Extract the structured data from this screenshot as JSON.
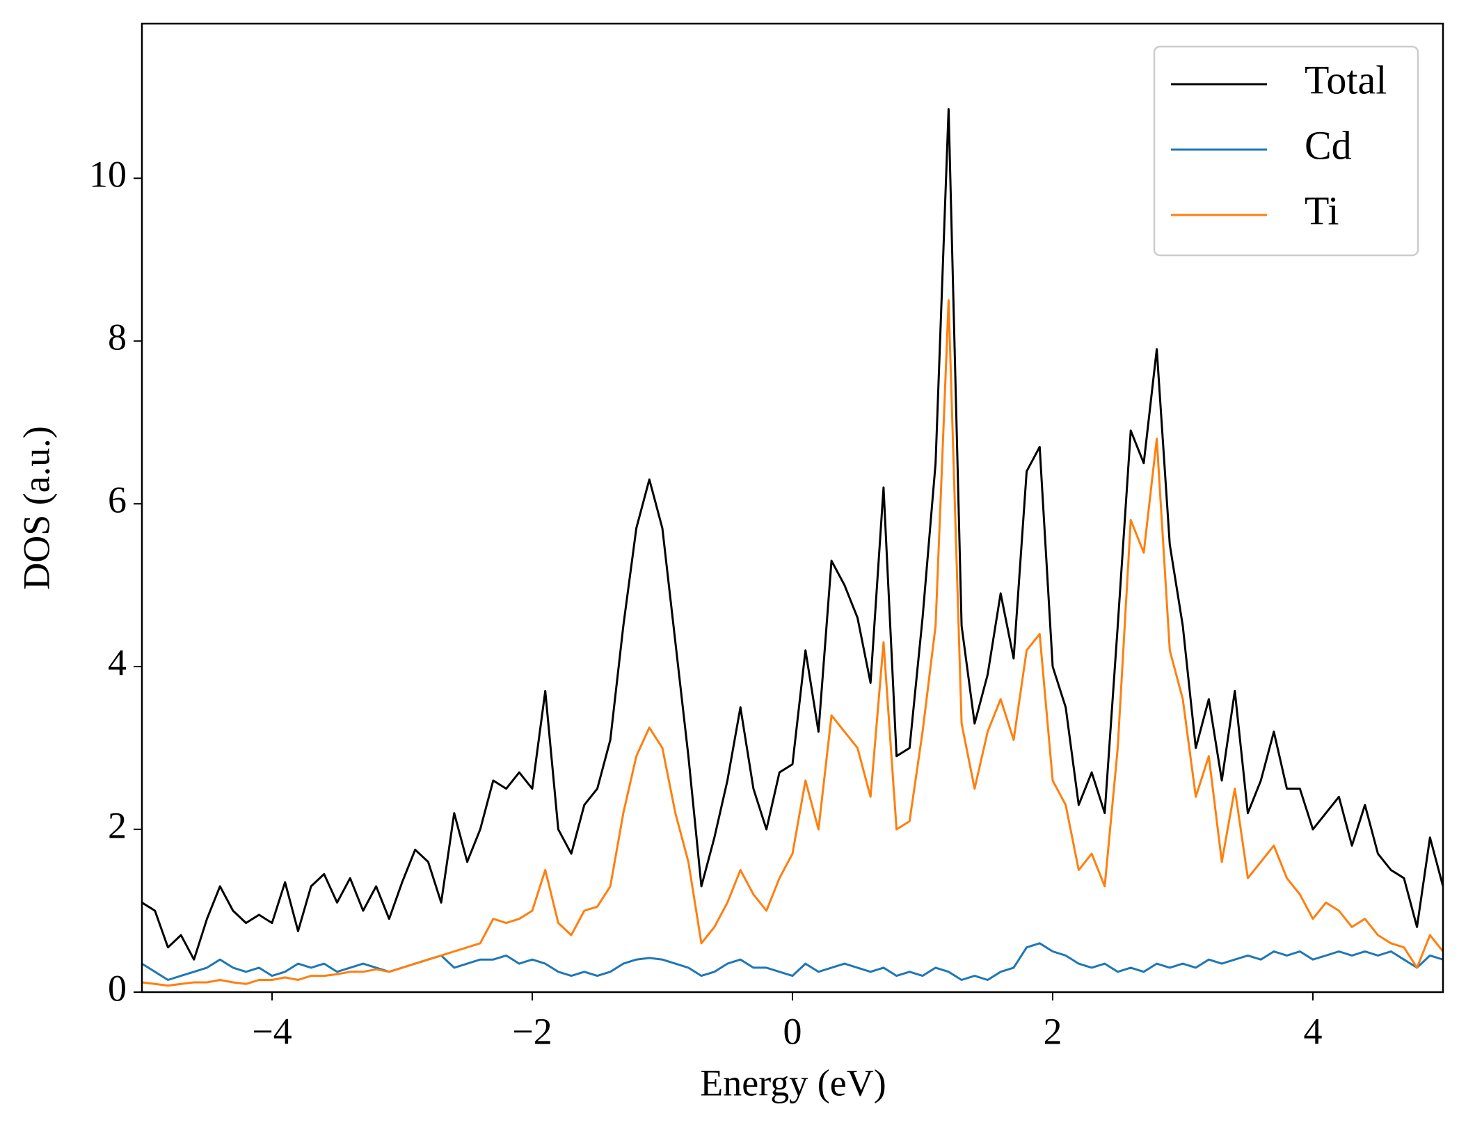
{
  "chart_data": {
    "type": "line",
    "xlabel": "Energy (eV)",
    "ylabel": "DOS (a.u.)",
    "x": [
      -5.0,
      -4.9,
      -4.8,
      -4.7,
      -4.6,
      -4.5,
      -4.4,
      -4.3,
      -4.2,
      -4.1,
      -4.0,
      -3.9,
      -3.8,
      -3.7,
      -3.6,
      -3.5,
      -3.4,
      -3.3,
      -3.2,
      -3.1,
      -3.0,
      -2.9,
      -2.8,
      -2.7,
      -2.6,
      -2.5,
      -2.4,
      -2.3,
      -2.2,
      -2.1,
      -2.0,
      -1.9,
      -1.8,
      -1.7,
      -1.6,
      -1.5,
      -1.4,
      -1.3,
      -1.2,
      -1.1,
      -1.0,
      -0.9,
      -0.8,
      -0.7,
      -0.6,
      -0.5,
      -0.4,
      -0.3,
      -0.2,
      -0.1,
      0.0,
      0.1,
      0.2,
      0.3,
      0.4,
      0.5,
      0.6,
      0.7,
      0.8,
      0.9,
      1.0,
      1.1,
      1.2,
      1.3,
      1.4,
      1.5,
      1.6,
      1.7,
      1.8,
      1.9,
      2.0,
      2.1,
      2.2,
      2.3,
      2.4,
      2.5,
      2.6,
      2.7,
      2.8,
      2.9,
      3.0,
      3.1,
      3.2,
      3.3,
      3.4,
      3.5,
      3.6,
      3.7,
      3.8,
      3.9,
      4.0,
      4.1,
      4.2,
      4.3,
      4.4,
      4.5,
      4.6,
      4.7,
      4.8,
      4.9,
      5.0
    ],
    "series": [
      {
        "name": "Total",
        "color": "#000000",
        "values": [
          1.1,
          1.0,
          0.55,
          0.7,
          0.4,
          0.9,
          1.3,
          1.0,
          0.85,
          0.95,
          0.85,
          1.35,
          0.75,
          1.3,
          1.45,
          1.1,
          1.4,
          1.0,
          1.3,
          0.9,
          1.35,
          1.75,
          1.6,
          1.1,
          2.2,
          1.6,
          2.0,
          2.6,
          2.5,
          2.7,
          2.5,
          3.7,
          2.0,
          1.7,
          2.3,
          2.5,
          3.1,
          4.5,
          5.7,
          6.3,
          5.7,
          4.3,
          2.9,
          1.3,
          1.9,
          2.6,
          3.5,
          2.5,
          2.0,
          2.7,
          2.8,
          4.2,
          3.2,
          5.3,
          5.0,
          4.6,
          3.8,
          6.2,
          2.9,
          3.0,
          4.6,
          6.5,
          10.85,
          4.5,
          3.3,
          3.9,
          4.9,
          4.1,
          6.4,
          6.7,
          4.0,
          3.5,
          2.3,
          2.7,
          2.2,
          4.5,
          6.9,
          6.5,
          7.9,
          5.5,
          4.5,
          3.0,
          3.6,
          2.6,
          3.7,
          2.2,
          2.6,
          3.2,
          2.5,
          2.5,
          2.0,
          2.2,
          2.4,
          1.8,
          2.3,
          1.7,
          1.5,
          1.4,
          0.8,
          1.9,
          1.3
        ]
      },
      {
        "name": "Cd",
        "color": "#1f77b4",
        "values": [
          0.35,
          0.25,
          0.15,
          0.2,
          0.25,
          0.3,
          0.4,
          0.3,
          0.25,
          0.3,
          0.2,
          0.25,
          0.35,
          0.3,
          0.35,
          0.25,
          0.3,
          0.35,
          0.3,
          0.25,
          0.3,
          0.35,
          0.4,
          0.45,
          0.3,
          0.35,
          0.4,
          0.4,
          0.45,
          0.35,
          0.4,
          0.35,
          0.25,
          0.2,
          0.25,
          0.2,
          0.25,
          0.35,
          0.4,
          0.42,
          0.4,
          0.35,
          0.3,
          0.2,
          0.25,
          0.35,
          0.4,
          0.3,
          0.3,
          0.25,
          0.2,
          0.35,
          0.25,
          0.3,
          0.35,
          0.3,
          0.25,
          0.3,
          0.2,
          0.25,
          0.2,
          0.3,
          0.25,
          0.15,
          0.2,
          0.15,
          0.25,
          0.3,
          0.55,
          0.6,
          0.5,
          0.45,
          0.35,
          0.3,
          0.35,
          0.25,
          0.3,
          0.25,
          0.35,
          0.3,
          0.35,
          0.3,
          0.4,
          0.35,
          0.4,
          0.45,
          0.4,
          0.5,
          0.45,
          0.5,
          0.4,
          0.45,
          0.5,
          0.45,
          0.5,
          0.45,
          0.5,
          0.4,
          0.3,
          0.45,
          0.4
        ]
      },
      {
        "name": "Ti",
        "color": "#ff7f0e",
        "values": [
          0.12,
          0.1,
          0.08,
          0.1,
          0.12,
          0.12,
          0.15,
          0.12,
          0.1,
          0.15,
          0.15,
          0.18,
          0.15,
          0.2,
          0.2,
          0.22,
          0.25,
          0.25,
          0.28,
          0.25,
          0.3,
          0.35,
          0.4,
          0.45,
          0.5,
          0.55,
          0.6,
          0.9,
          0.85,
          0.9,
          1.0,
          1.5,
          0.85,
          0.7,
          1.0,
          1.05,
          1.3,
          2.2,
          2.9,
          3.25,
          3.0,
          2.2,
          1.6,
          0.6,
          0.8,
          1.1,
          1.5,
          1.2,
          1.0,
          1.4,
          1.7,
          2.6,
          2.0,
          3.4,
          3.2,
          3.0,
          2.4,
          4.3,
          2.0,
          2.1,
          3.2,
          4.5,
          8.5,
          3.3,
          2.5,
          3.2,
          3.6,
          3.1,
          4.2,
          4.4,
          2.6,
          2.3,
          1.5,
          1.7,
          1.3,
          3.0,
          5.8,
          5.4,
          6.8,
          4.2,
          3.6,
          2.4,
          2.9,
          1.6,
          2.5,
          1.4,
          1.6,
          1.8,
          1.4,
          1.2,
          0.9,
          1.1,
          1.0,
          0.8,
          0.9,
          0.7,
          0.6,
          0.55,
          0.3,
          0.7,
          0.5
        ]
      }
    ],
    "xlim": [
      -5,
      5
    ],
    "ylim": [
      0,
      11.9
    ],
    "xticks": [
      {
        "value": -4,
        "label": "−4"
      },
      {
        "value": -2,
        "label": "−2"
      },
      0,
      2,
      4
    ],
    "yticks": [
      0,
      2,
      4,
      6,
      8,
      10
    ],
    "legend": "upper right",
    "grid": false
  }
}
